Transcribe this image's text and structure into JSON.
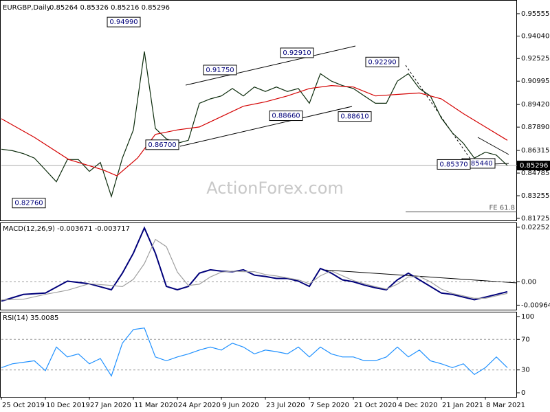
{
  "chart_data": [
    {
      "type": "line",
      "title": "EURGBP,Daily",
      "subtitle": "0.85264 0.85326 0.85216 0.85296",
      "watermark": "ActionForex.com",
      "xlim": [
        0,
        375
      ],
      "ylim": [
        0.8154,
        0.9648
      ],
      "yticks": [
        {
          "value": 0.95555,
          "label": "0.95555"
        },
        {
          "value": 0.9404,
          "label": "0.94040"
        },
        {
          "value": 0.92525,
          "label": "0.92525"
        },
        {
          "value": 0.90995,
          "label": "0.90995"
        },
        {
          "value": 0.8942,
          "label": "0.89420"
        },
        {
          "value": 0.8789,
          "label": "0.87890"
        },
        {
          "value": 0.86315,
          "label": "0.86315"
        },
        {
          "value": 0.84785,
          "label": "0.84785"
        },
        {
          "value": 0.83255,
          "label": "0.83255"
        },
        {
          "value": 0.81725,
          "label": "0.81725"
        }
      ],
      "series": [
        {
          "color": "#0b2b0b",
          "x": [
            0,
            8,
            16,
            24,
            32,
            40,
            48,
            56,
            64,
            72,
            80,
            88,
            96,
            104,
            112,
            120,
            128,
            136,
            144,
            152,
            160,
            168,
            176,
            184,
            192,
            200,
            208,
            216,
            224,
            232,
            240,
            248,
            256,
            264,
            272,
            280,
            288,
            296,
            304,
            312,
            320,
            328,
            336,
            344,
            352,
            360,
            368
          ],
          "values": [
            0.864,
            0.863,
            0.861,
            0.858,
            0.85,
            0.842,
            0.857,
            0.857,
            0.849,
            0.855,
            0.832,
            0.858,
            0.877,
            0.93,
            0.878,
            0.871,
            0.868,
            0.87,
            0.895,
            0.898,
            0.9,
            0.905,
            0.9,
            0.906,
            0.903,
            0.906,
            0.903,
            0.905,
            0.895,
            0.915,
            0.91,
            0.907,
            0.905,
            0.9,
            0.895,
            0.895,
            0.91,
            0.915,
            0.905,
            0.9,
            0.885,
            0.875,
            0.868,
            0.858,
            0.862,
            0.86,
            0.853
          ]
        },
        {
          "color": "#d40000",
          "x": [
            0,
            24,
            49,
            74,
            84,
            99,
            112,
            128,
            144,
            160,
            176,
            192,
            208,
            224,
            240,
            256,
            272,
            288,
            304,
            320,
            336,
            352,
            368
          ],
          "values": [
            0.8846,
            0.872,
            0.857,
            0.85,
            0.846,
            0.858,
            0.874,
            0.877,
            0.879,
            0.886,
            0.893,
            0.896,
            0.9,
            0.905,
            0.907,
            0.906,
            0.9,
            0.901,
            0.902,
            0.898,
            0.888,
            0.879,
            0.87
          ]
        }
      ],
      "annotations": [
        {
          "label": "0.94990",
          "value": 0.9499,
          "x": 102
        },
        {
          "label": "0.92910",
          "value": 0.9291,
          "x": 228
        },
        {
          "label": "0.92290",
          "value": 0.9229,
          "x": 290
        },
        {
          "label": "0.91750",
          "value": 0.9175,
          "x": 172
        },
        {
          "label": "0.88660",
          "value": 0.8866,
          "x": 220
        },
        {
          "label": "0.88610",
          "value": 0.8861,
          "x": 270
        },
        {
          "label": "0.86700",
          "value": 0.867,
          "x": 130
        },
        {
          "label": "0.85440",
          "value": 0.8544,
          "x": 360
        },
        {
          "label": "0.85370",
          "value": 0.8537,
          "x": 342
        },
        {
          "label": "0.82760",
          "value": 0.8276,
          "x": 33
        }
      ],
      "last_price": {
        "value": 0.85296,
        "label": "0.85296"
      },
      "fe_level": {
        "value": 0.8216,
        "label": "FE 61.8"
      }
    },
    {
      "type": "line",
      "title": "MACD(12,26,9) -0.003671 -0.003717",
      "xlim": [
        0,
        375
      ],
      "ylim": [
        -0.0118,
        0.0242
      ],
      "yticks": [
        0.022525,
        {
          "value": 0,
          "label": "0.00"
        },
        -0.009649
      ],
      "levels": [
        0
      ],
      "series": [
        {
          "color": "#00007a",
          "x": [
            0,
            16,
            32,
            48,
            64,
            80,
            88,
            96,
            104,
            112,
            120,
            128,
            136,
            144,
            152,
            160,
            168,
            176,
            184,
            192,
            200,
            208,
            216,
            224,
            232,
            240,
            248,
            256,
            264,
            272,
            280,
            288,
            296,
            304,
            312,
            320,
            328,
            336,
            344,
            352,
            360,
            368
          ],
          "values": [
            -0.00797,
            -0.00522,
            -0.00467,
            0.00027,
            -0.00082,
            -0.0033,
            0.00357,
            0.01181,
            0.02225,
            0.01181,
            -0.00192,
            -0.0033,
            -0.00192,
            0.00357,
            0.00495,
            0.0044,
            0.00412,
            0.00495,
            0.00275,
            0.0022,
            0.00137,
            0.00137,
            0.00027,
            -0.00192,
            0.0055,
            0.00357,
            0.00082,
            0,
            -0.00137,
            -0.00247,
            -0.0033,
            0.00082,
            0.00357,
            0.00082,
            -0.00192,
            -0.00467,
            -0.00522,
            -0.00632,
            -0.00742,
            -0.00632,
            -0.00522,
            -0.00412
          ]
        },
        {
          "color": "#a0a0a0",
          "x": [
            0,
            16,
            32,
            48,
            64,
            80,
            88,
            96,
            104,
            112,
            120,
            128,
            136,
            144,
            152,
            160,
            168,
            176,
            184,
            192,
            200,
            208,
            216,
            224,
            232,
            240,
            248,
            256,
            264,
            272,
            280,
            288,
            296,
            304,
            312,
            320,
            328,
            336,
            344,
            352,
            360,
            368
          ],
          "values": [
            -0.0075,
            -0.0072,
            -0.0052,
            -0.0035,
            -0.0008,
            -0.0015,
            -0.002,
            0.001,
            0.0075,
            0.0175,
            0.0145,
            0.004,
            -0.0015,
            -0.001,
            0.002,
            0.004,
            0.0044,
            0.0042,
            0.0042,
            0.003,
            0.0024,
            0.0016,
            0.0008,
            -0.0008,
            0.0025,
            0.0045,
            0.0025,
            0.0005,
            -0.0008,
            -0.002,
            -0.003,
            -0.001,
            0.002,
            0.0022,
            0,
            -0.003,
            -0.0048,
            -0.0058,
            -0.0068,
            -0.0068,
            -0.0058,
            -0.0048
          ]
        }
      ]
    },
    {
      "type": "line",
      "title": "RSI(14) 35.0085",
      "xlim": [
        0,
        375
      ],
      "ylim": [
        -5.4,
        105.4
      ],
      "yticks": [
        100,
        70,
        30,
        0
      ],
      "levels": [
        70,
        30
      ],
      "xticks": [
        {
          "value": 0,
          "label": "25 Oct 2019"
        },
        {
          "value": 32,
          "label": "10 Dec 2019"
        },
        {
          "value": 64,
          "label": "27 Jan 2020"
        },
        {
          "value": 96,
          "label": "11 Mar 2020"
        },
        {
          "value": 128,
          "label": "24 Apr 2020"
        },
        {
          "value": 160,
          "label": "9 Jun 2020"
        },
        {
          "value": 192,
          "label": "23 Jul 2020"
        },
        {
          "value": 224,
          "label": "7 Sep 2020"
        },
        {
          "value": 256,
          "label": "21 Oct 2020"
        },
        {
          "value": 288,
          "label": "4 Dec 2020"
        },
        {
          "value": 320,
          "label": "21 Jan 2021"
        },
        {
          "value": 352,
          "label": "8 Mar 2021"
        }
      ],
      "series": [
        {
          "color": "#1e90ff",
          "x": [
            0,
            8,
            16,
            24,
            32,
            40,
            48,
            56,
            64,
            72,
            80,
            88,
            96,
            104,
            112,
            120,
            128,
            136,
            144,
            152,
            160,
            168,
            176,
            184,
            192,
            200,
            208,
            216,
            224,
            232,
            240,
            248,
            256,
            264,
            272,
            280,
            288,
            296,
            304,
            312,
            320,
            328,
            336,
            344,
            352,
            360,
            368
          ],
          "values": [
            33,
            38,
            40,
            42,
            29,
            60,
            47,
            51,
            38,
            45,
            22,
            65,
            83,
            85,
            47,
            42,
            47,
            51,
            56,
            60,
            56,
            65,
            60,
            51,
            56,
            54,
            51,
            60,
            47,
            60,
            51,
            47,
            47,
            42,
            42,
            47,
            60,
            47,
            56,
            42,
            38,
            33,
            38,
            24,
            33,
            47,
            33
          ]
        }
      ]
    }
  ]
}
